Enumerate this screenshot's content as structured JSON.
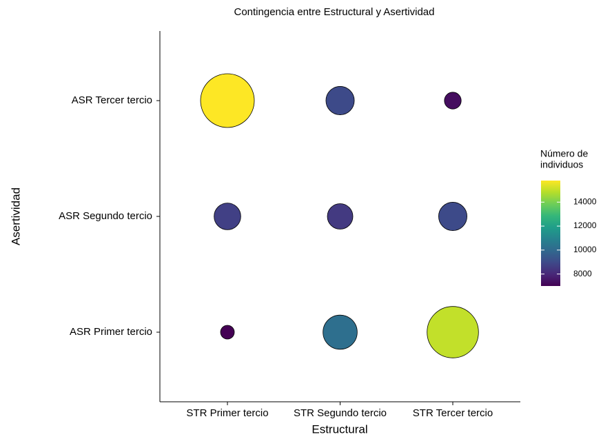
{
  "chart_data": {
    "type": "bubble",
    "title": "Contingencia entre Estructural y Asertividad",
    "x_label": "Estructural",
    "y_label": "Asertividad",
    "categories": [
      "STR Primer tercio",
      "STR Segundo tercio",
      "STR Tercer tercio"
    ],
    "y_categories": [
      "ASR Primer tercio",
      "ASR Segundo tercio",
      "ASR Tercer tercio"
    ],
    "values": [
      [
        7000,
        10200,
        15000
      ],
      [
        8700,
        8500,
        9000
      ],
      [
        15800,
        9000,
        7300
      ]
    ],
    "colorbar": {
      "title": [
        "Número de",
        "individuos"
      ],
      "lim": [
        7000,
        15800
      ],
      "ticks": [
        8000,
        10000,
        12000,
        14000
      ],
      "palette": "viridis"
    }
  }
}
